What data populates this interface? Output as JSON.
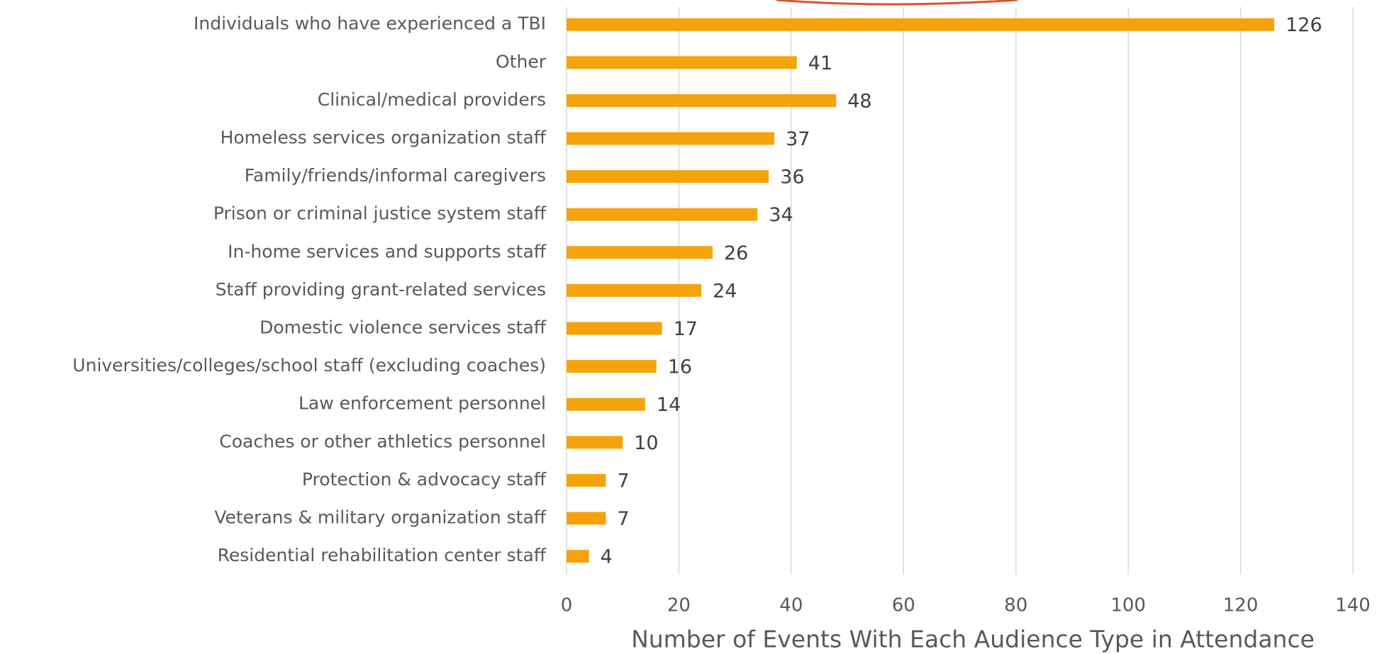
{
  "chart_data": {
    "type": "bar",
    "orientation": "horizontal",
    "x_label": "Number of Events With Each Audience Type in Attendance",
    "categories": [
      "Individuals who have experienced a TBI",
      "Other",
      "Clinical/medical providers",
      "Homeless services organization staff",
      "Family/friends/informal caregivers",
      "Prison or criminal justice system staff",
      "In-home services and supports staff",
      "Staff providing grant-related services",
      "Domestic violence services staff",
      "Universities/colleges/school staff (excluding coaches)",
      "Law enforcement personnel",
      "Coaches or other athletics personnel",
      "Protection & advocacy staff",
      "Veterans & military organization staff",
      "Residential rehabilitation center staff"
    ],
    "values": [
      126,
      41,
      48,
      37,
      36,
      34,
      26,
      24,
      17,
      16,
      14,
      10,
      7,
      7,
      4
    ],
    "color": "#f5a30c",
    "xlim": [
      0,
      140
    ],
    "xticks": [
      0,
      20,
      40,
      60,
      80,
      100,
      120,
      140
    ],
    "grid": true
  }
}
